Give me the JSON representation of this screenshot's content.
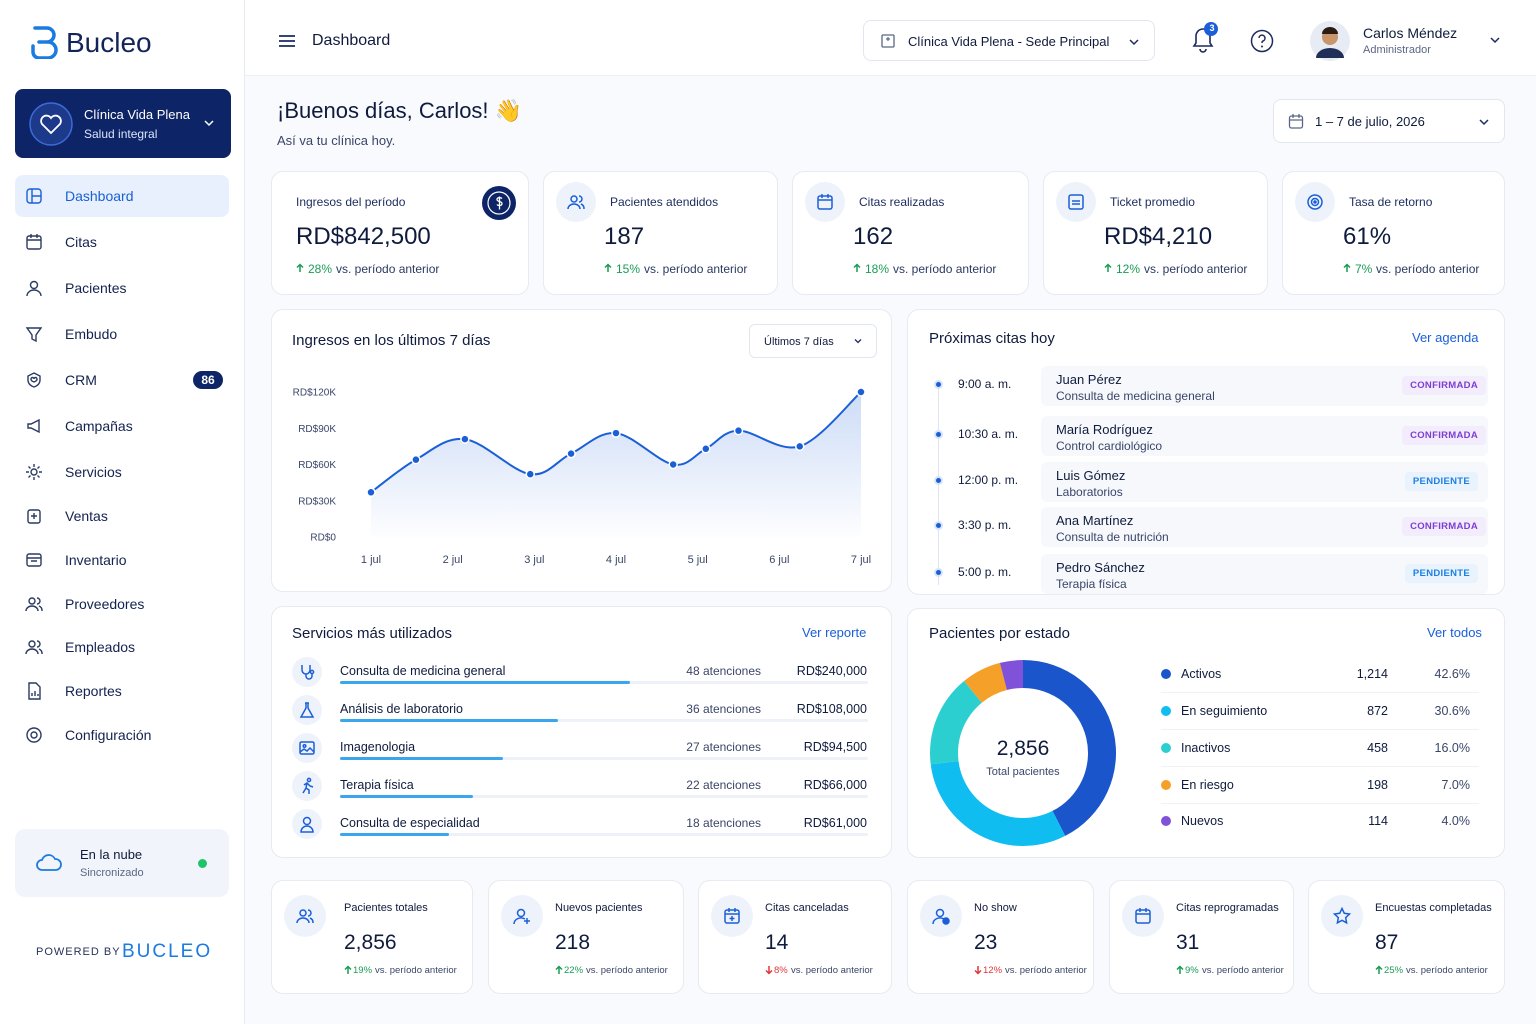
{
  "sidebar": {
    "brand": "Bucleo",
    "clinic": {
      "name": "Clínica Vida Plena",
      "subtitle": "Salud integral"
    },
    "nav": [
      {
        "label": "Dashboard"
      },
      {
        "label": "Citas"
      },
      {
        "label": "Pacientes"
      },
      {
        "label": "Embudo"
      },
      {
        "label": "CRM",
        "badge": "86"
      },
      {
        "label": "Campañas"
      },
      {
        "label": "Servicios"
      },
      {
        "label": "Ventas"
      },
      {
        "label": "Inventario"
      },
      {
        "label": "Proveedores"
      },
      {
        "label": "Empleados"
      },
      {
        "label": "Reportes"
      },
      {
        "label": "Configuración"
      }
    ],
    "status": {
      "title": "En la nube",
      "subtitle": "Sincronizado"
    },
    "powered_by": "POWERED BY",
    "powered_brand": "BUCLEO"
  },
  "topbar": {
    "title": "Dashboard",
    "location": "Clínica Vida Plena - Sede Principal",
    "notifications": "3",
    "user": {
      "name": "Carlos Méndez",
      "role": "Administrador"
    }
  },
  "greeting": {
    "title": "¡Buenos días, Carlos! 👋",
    "subtitle": "Así va tu clínica hoy.",
    "date_range": "1 – 7 de julio, 2026"
  },
  "comparison": "vs. período anterior",
  "kpis": [
    {
      "label": "Ingresos del período",
      "value": "RD$842,500",
      "change": "28%",
      "direction": "up"
    },
    {
      "label": "Pacientes atendidos",
      "value": "187",
      "change": "15%",
      "direction": "up"
    },
    {
      "label": "Citas realizadas",
      "value": "162",
      "change": "18%",
      "direction": "up"
    },
    {
      "label": "Ticket promedio",
      "value": "RD$4,210",
      "change": "12%",
      "direction": "up"
    },
    {
      "label": "Tasa de retorno",
      "value": "61%",
      "change": "7%",
      "direction": "up"
    }
  ],
  "revenue_chart": {
    "type": "line",
    "title": "Ingresos en los últimos 7 días",
    "range_select": "Últimos 7 días",
    "color": "#1a5fd8",
    "x": [
      1,
      1.55,
      2.15,
      2.95,
      3.45,
      4,
      4.7,
      5.1,
      5.5,
      6.25,
      7
    ],
    "values": [
      37000,
      64000,
      81000,
      52000,
      69000,
      86000,
      60000,
      73000,
      88000,
      75000,
      120000
    ],
    "xlim": [
      1,
      7
    ],
    "xticks": [
      {
        "value": 1,
        "label": "1 jul"
      },
      {
        "value": 2,
        "label": "2 jul"
      },
      {
        "value": 3,
        "label": "3 jul"
      },
      {
        "value": 4,
        "label": "4 jul"
      },
      {
        "value": 5,
        "label": "5 jul"
      },
      {
        "value": 6,
        "label": "6 jul"
      },
      {
        "value": 7,
        "label": "7 jul"
      }
    ],
    "ylim": [
      0,
      120000
    ],
    "yticks": [
      {
        "value": 0,
        "label": "RD$0"
      },
      {
        "value": 30000,
        "label": "RD$30K"
      },
      {
        "value": 60000,
        "label": "RD$60K"
      },
      {
        "value": 90000,
        "label": "RD$90K"
      },
      {
        "value": 120000,
        "label": "RD$120K"
      }
    ]
  },
  "appointments": {
    "title": "Próximas citas hoy",
    "link": "Ver agenda",
    "items": [
      {
        "time": "9:00 a. m.",
        "name": "Juan Pérez",
        "detail": "Consulta de medicina general",
        "status": "CONFIRMADA"
      },
      {
        "time": "10:30 a. m.",
        "name": "María Rodríguez",
        "detail": "Control cardiológico",
        "status": "CONFIRMADA"
      },
      {
        "time": "12:00 p. m.",
        "name": "Luis Gómez",
        "detail": "Laboratorios",
        "status": "PENDIENTE"
      },
      {
        "time": "3:30 p. m.",
        "name": "Ana Martínez",
        "detail": "Consulta de nutrición",
        "status": "CONFIRMADA"
      },
      {
        "time": "5:00 p. m.",
        "name": "Pedro Sánchez",
        "detail": "Terapia física",
        "status": "PENDIENTE"
      }
    ]
  },
  "services": {
    "title": "Servicios más utilizados",
    "link": "Ver reporte",
    "items": [
      {
        "name": "Consulta de medicina general",
        "count": 48,
        "count_label": "48 atenciones",
        "amount": "RD$240,000"
      },
      {
        "name": "Análisis de laboratorio",
        "count": 36,
        "count_label": "36 atenciones",
        "amount": "RD$108,000"
      },
      {
        "name": "Imagenologia",
        "count": 27,
        "count_label": "27 atenciones",
        "amount": "RD$94,500"
      },
      {
        "name": "Terapia física",
        "count": 22,
        "count_label": "22 atenciones",
        "amount": "RD$66,000"
      },
      {
        "name": "Consulta de especialidad",
        "count": 18,
        "count_label": "18 atenciones",
        "amount": "RD$61,000"
      }
    ]
  },
  "patients_by_status": {
    "type": "pie",
    "title": "Pacientes por estado",
    "link": "Ver todos",
    "total": "2,856",
    "total_label": "Total pacientes",
    "categories": [
      "Activos",
      "En seguimiento",
      "Inactivos",
      "En riesgo",
      "Nuevos"
    ],
    "values": [
      1214,
      872,
      458,
      198,
      114
    ],
    "value_labels": [
      "1,214",
      "872",
      "458",
      "198",
      "114"
    ],
    "percent_labels": [
      "42.6%",
      "30.6%",
      "16.0%",
      "7.0%",
      "4.0%"
    ],
    "colors": [
      "#1b55cc",
      "#10bdf0",
      "#2ccfd0",
      "#f5a028",
      "#7f52d9"
    ]
  },
  "summary": [
    {
      "label": "Pacientes totales",
      "value": "2,856",
      "change": "19%",
      "direction": "up"
    },
    {
      "label": "Nuevos pacientes",
      "value": "218",
      "change": "22%",
      "direction": "up"
    },
    {
      "label": "Citas canceladas",
      "value": "14",
      "change": "8%",
      "direction": "down"
    },
    {
      "label": "No show",
      "value": "23",
      "change": "12%",
      "direction": "down"
    },
    {
      "label": "Citas reprogramadas",
      "value": "31",
      "change": "9%",
      "direction": "up"
    },
    {
      "label": "Encuestas completadas",
      "value": "87",
      "change": "25%",
      "direction": "up"
    }
  ]
}
